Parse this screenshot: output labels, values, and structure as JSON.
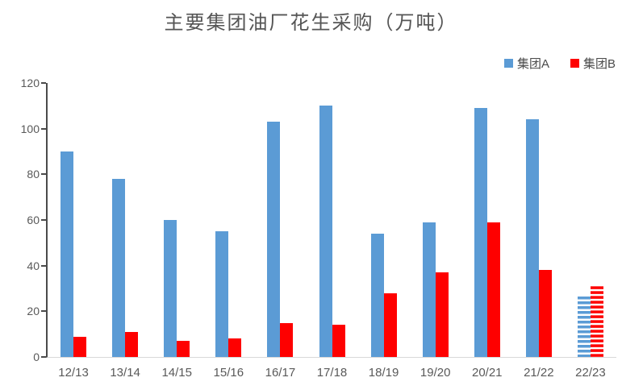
{
  "chart_data": {
    "type": "bar",
    "title": "主要集团油厂花生采购（万吨）",
    "categories": [
      "12/13",
      "13/14",
      "14/15",
      "15/16",
      "16/17",
      "17/18",
      "18/19",
      "19/20",
      "20/21",
      "21/22",
      "22/23"
    ],
    "series": [
      {
        "name": "集团A",
        "color": "#5b9bd5",
        "values": [
          90,
          78,
          60,
          55,
          103,
          110,
          54,
          59,
          109,
          104,
          27
        ]
      },
      {
        "name": "集团B",
        "color": "#fe0000",
        "values": [
          9,
          11,
          7,
          8,
          15,
          14,
          28,
          37,
          59,
          38,
          31
        ]
      }
    ],
    "forecast_category": "22/23",
    "ylim": [
      0,
      120
    ],
    "yticks": [
      0,
      20,
      40,
      60,
      80,
      100,
      120
    ],
    "grid": false,
    "legend_position": "top-right",
    "colors": {
      "axis_line": "#4a4a4a",
      "baseline": "#d9d9d9",
      "tick_text": "#595959",
      "title_text": "#555555"
    }
  }
}
